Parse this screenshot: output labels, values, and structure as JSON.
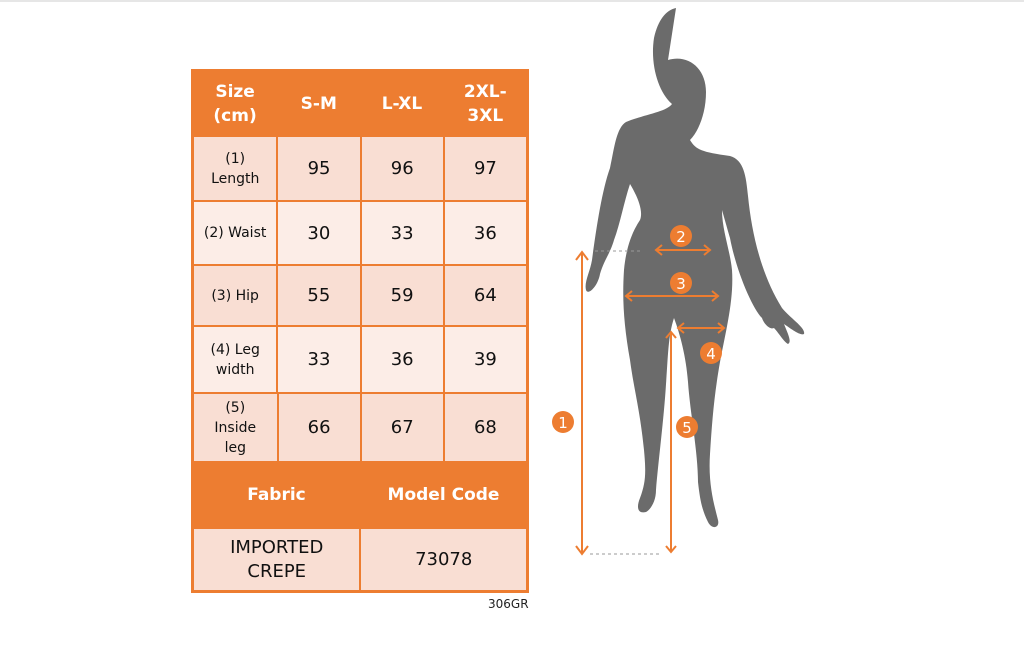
{
  "size_chart": {
    "header": [
      "Size (cm)",
      "S-M",
      "L-XL",
      "2XL-3XL"
    ],
    "rows": [
      {
        "label": "(1) Length",
        "values": [
          "95",
          "96",
          "97"
        ]
      },
      {
        "label": "(2) Waist",
        "values": [
          "30",
          "33",
          "36"
        ]
      },
      {
        "label": "(3) Hip",
        "values": [
          "55",
          "59",
          "64"
        ]
      },
      {
        "label": "(4) Leg width",
        "values": [
          "33",
          "36",
          "39"
        ]
      },
      {
        "label": "(5) Inside leg",
        "values": [
          "66",
          "67",
          "68"
        ]
      }
    ],
    "footer_headers": [
      "Fabric",
      "Model Code"
    ],
    "footer_values": [
      "IMPORTED CREPE",
      "73078"
    ]
  },
  "product_code": "306GR",
  "markers": [
    "1",
    "2",
    "3",
    "4",
    "5"
  ],
  "colors": {
    "accent": "#ED7D31",
    "silhouette": "#6B6B6B",
    "cell": "#F9DED3"
  }
}
